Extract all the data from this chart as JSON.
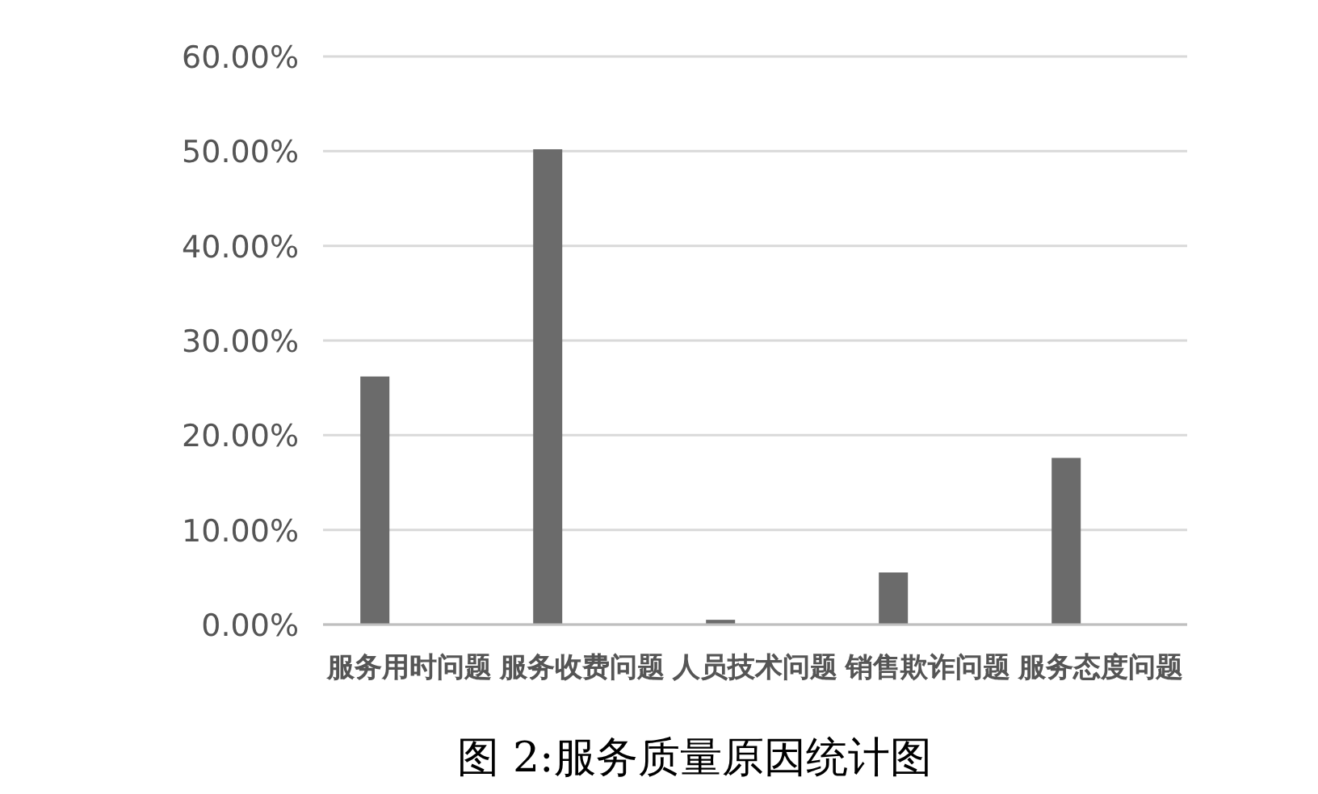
{
  "chart_data": {
    "type": "bar",
    "title": "图 2:服务质量原因统计图",
    "categories": [
      "服务用时问题",
      "服务收费问题",
      "人员技术问题",
      "销售欺诈问题",
      "服务态度问题"
    ],
    "values": [
      26.2,
      50.2,
      0.5,
      5.5,
      17.6
    ],
    "color": "#6b6b6b",
    "ylim": [
      0,
      60
    ],
    "yticks": [
      {
        "value": 0,
        "label": "0.00%"
      },
      {
        "value": 10,
        "label": "10.00%"
      },
      {
        "value": 20,
        "label": "20.00%"
      },
      {
        "value": 30,
        "label": "30.00%"
      },
      {
        "value": 40,
        "label": "40.00%"
      },
      {
        "value": 50,
        "label": "50.00%"
      },
      {
        "value": 60,
        "label": "60.00%"
      }
    ],
    "grid": "y"
  }
}
